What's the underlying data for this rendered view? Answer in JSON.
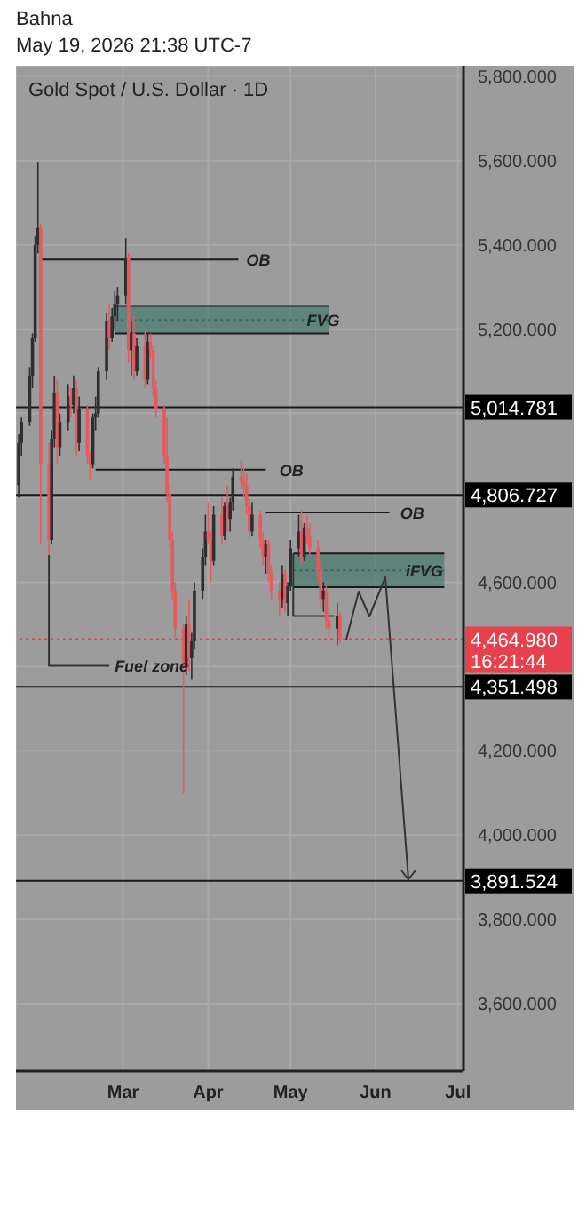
{
  "chart_data": {
    "type": "candlestick",
    "title": "Gold Spot / U.S. Dollar · 1D",
    "subtitle": "May 19, 2026 21:38 UTC-7",
    "annotations": [
      "Bahna",
      {
        "text": "OB",
        "x": "2026-04-13",
        "y": 5365
      },
      {
        "text": "OB",
        "x": "2026-04-25",
        "y": 4867
      },
      {
        "text": "OB",
        "x": "2026-06-08",
        "y": 4765
      },
      {
        "text": "FVG",
        "x": "2026-05-05",
        "y": 5222
      },
      {
        "text": "iFVG",
        "x": "2026-06-10",
        "y": 4628
      },
      {
        "text": "Fuel zone",
        "x": "2026-02-24",
        "y": 4402
      }
    ],
    "x": [
      "2026-01-22",
      "2026-01-23",
      "2026-01-26",
      "2026-01-27",
      "2026-01-28",
      "2026-01-29",
      "2026-01-30",
      "2026-02-02",
      "2026-02-03",
      "2026-02-04",
      "2026-02-05",
      "2026-02-06",
      "2026-02-09",
      "2026-02-10",
      "2026-02-11",
      "2026-02-12",
      "2026-02-13",
      "2026-02-16",
      "2026-02-17",
      "2026-02-18",
      "2026-02-19",
      "2026-02-20",
      "2026-02-23",
      "2026-02-24",
      "2026-02-25",
      "2026-02-26",
      "2026-02-27",
      "2026-03-02",
      "2026-03-03",
      "2026-03-04",
      "2026-03-05",
      "2026-03-06",
      "2026-03-09",
      "2026-03-10",
      "2026-03-11",
      "2026-03-12",
      "2026-03-13",
      "2026-03-16",
      "2026-03-17",
      "2026-03-18",
      "2026-03-19",
      "2026-03-20",
      "2026-03-23",
      "2026-03-24",
      "2026-03-25",
      "2026-03-26",
      "2026-03-27",
      "2026-03-30",
      "2026-03-31",
      "2026-04-01",
      "2026-04-02",
      "2026-04-03",
      "2026-04-06",
      "2026-04-07",
      "2026-04-08",
      "2026-04-09",
      "2026-04-10",
      "2026-04-13",
      "2026-04-14",
      "2026-04-15",
      "2026-04-16",
      "2026-04-17",
      "2026-04-20",
      "2026-04-21",
      "2026-04-22",
      "2026-04-23",
      "2026-04-24",
      "2026-04-27",
      "2026-04-28",
      "2026-04-29",
      "2026-04-30",
      "2026-05-01",
      "2026-05-04",
      "2026-05-05",
      "2026-05-06",
      "2026-05-07",
      "2026-05-08",
      "2026-05-11",
      "2026-05-12",
      "2026-05-13",
      "2026-05-14",
      "2026-05-15",
      "2026-05-18",
      "2026-05-19"
    ],
    "ohlc": [
      [
        4830,
        4950,
        4800,
        4930
      ],
      [
        4930,
        4990,
        4900,
        4980
      ],
      [
        4980,
        5110,
        4970,
        5090
      ],
      [
        5090,
        5190,
        5060,
        5180
      ],
      [
        5180,
        5420,
        5170,
        5400
      ],
      [
        5400,
        5597,
        5380,
        5440
      ],
      [
        5440,
        5450,
        4690,
        4880
      ],
      [
        4880,
        4930,
        4664,
        4700
      ],
      [
        4700,
        4960,
        4690,
        4940
      ],
      [
        4940,
        5090,
        4920,
        5050
      ],
      [
        5050,
        5080,
        4880,
        4920
      ],
      [
        4920,
        5000,
        4900,
        4980
      ],
      [
        4980,
        5070,
        4960,
        5040
      ],
      [
        5040,
        5060,
        4990,
        5020
      ],
      [
        5020,
        5090,
        5000,
        5060
      ],
      [
        5060,
        5080,
        4900,
        4930
      ],
      [
        4930,
        5040,
        4910,
        5010
      ],
      [
        5010,
        5020,
        4880,
        4900
      ],
      [
        4900,
        4910,
        4845,
        4880
      ],
      [
        4880,
        5000,
        4870,
        4990
      ],
      [
        4990,
        5040,
        4960,
        5000
      ],
      [
        5000,
        5110,
        4990,
        5100
      ],
      [
        5100,
        5240,
        5080,
        5220
      ],
      [
        5220,
        5260,
        5150,
        5180
      ],
      [
        5180,
        5250,
        5170,
        5230
      ],
      [
        5230,
        5290,
        5200,
        5260
      ],
      [
        5260,
        5300,
        5220,
        5280
      ],
      [
        5280,
        5416,
        5260,
        5370
      ],
      [
        5370,
        5380,
        5120,
        5150
      ],
      [
        5150,
        5220,
        5090,
        5190
      ],
      [
        5190,
        5230,
        5080,
        5100
      ],
      [
        5100,
        5180,
        5090,
        5160
      ],
      [
        5160,
        5200,
        5060,
        5080
      ],
      [
        5080,
        5190,
        5070,
        5170
      ],
      [
        5170,
        5190,
        5130,
        5150
      ],
      [
        5150,
        5160,
        5040,
        5060
      ],
      [
        5060,
        5080,
        4990,
        5010
      ],
      [
        5010,
        5020,
        4880,
        4900
      ],
      [
        4900,
        4990,
        4790,
        4810
      ],
      [
        4810,
        4830,
        4680,
        4700
      ],
      [
        4700,
        4720,
        4560,
        4580
      ],
      [
        4580,
        4600,
        4470,
        4490
      ],
      [
        4490,
        4500,
        4098,
        4400
      ],
      [
        4400,
        4520,
        4380,
        4500
      ],
      [
        4500,
        4560,
        4390,
        4420
      ],
      [
        4420,
        4480,
        4368,
        4460
      ],
      [
        4460,
        4600,
        4440,
        4580
      ],
      [
        4580,
        4680,
        4560,
        4660
      ],
      [
        4660,
        4760,
        4640,
        4720
      ],
      [
        4720,
        4790,
        4690,
        4700
      ],
      [
        4700,
        4720,
        4600,
        4650
      ],
      [
        4650,
        4780,
        4640,
        4760
      ],
      [
        4760,
        4800,
        4690,
        4710
      ],
      [
        4710,
        4790,
        4700,
        4780
      ],
      [
        4780,
        4830,
        4720,
        4750
      ],
      [
        4750,
        4800,
        4720,
        4790
      ],
      [
        4790,
        4870,
        4770,
        4850
      ],
      [
        4850,
        4888,
        4820,
        4840
      ],
      [
        4840,
        4870,
        4800,
        4830
      ],
      [
        4830,
        4860,
        4760,
        4780
      ],
      [
        4780,
        4800,
        4700,
        4720
      ],
      [
        4720,
        4790,
        4710,
        4760
      ],
      [
        4760,
        4770,
        4680,
        4700
      ],
      [
        4700,
        4720,
        4640,
        4660
      ],
      [
        4660,
        4700,
        4620,
        4690
      ],
      [
        4690,
        4700,
        4600,
        4620
      ],
      [
        4620,
        4640,
        4560,
        4580
      ],
      [
        4580,
        4600,
        4520,
        4560
      ],
      [
        4560,
        4640,
        4540,
        4620
      ],
      [
        4620,
        4630,
        4530,
        4550
      ],
      [
        4550,
        4600,
        4520,
        4590
      ],
      [
        4590,
        4700,
        4580,
        4680
      ],
      [
        4680,
        4760,
        4660,
        4720
      ],
      [
        4720,
        4770,
        4640,
        4660
      ],
      [
        4660,
        4740,
        4650,
        4730
      ],
      [
        4730,
        4760,
        4690,
        4710
      ],
      [
        4710,
        4740,
        4660,
        4680
      ],
      [
        4680,
        4700,
        4600,
        4630
      ],
      [
        4630,
        4650,
        4540,
        4560
      ],
      [
        4560,
        4600,
        4530,
        4580
      ],
      [
        4580,
        4590,
        4490,
        4510
      ],
      [
        4510,
        4540,
        4470,
        4490
      ],
      [
        4490,
        4550,
        4450,
        4520
      ],
      [
        4520,
        4530,
        4455,
        4464.98
      ]
    ],
    "colors": [
      "#2e2e2e",
      "#2e2e2e",
      "#2e2e2e",
      "#2e2e2e",
      "#2e2e2e",
      "#2e2e2e",
      "#e8585f",
      "#e8585f",
      "#2e2e2e",
      "#2e2e2e",
      "#e8585f",
      "#2e2e2e",
      "#2e2e2e",
      "#e8585f",
      "#2e2e2e",
      "#e8585f",
      "#2e2e2e",
      "#e8585f",
      "#e8585f",
      "#2e2e2e",
      "#2e2e2e",
      "#2e2e2e",
      "#2e2e2e",
      "#e8585f",
      "#2e2e2e",
      "#2e2e2e",
      "#2e2e2e",
      "#2e2e2e",
      "#e8585f",
      "#2e2e2e",
      "#e8585f",
      "#2e2e2e",
      "#e8585f",
      "#2e2e2e",
      "#e8585f",
      "#e8585f",
      "#e8585f",
      "#e8585f",
      "#e8585f",
      "#e8585f",
      "#e8585f",
      "#e8585f",
      "#e8585f",
      "#2e2e2e",
      "#e8585f",
      "#2e2e2e",
      "#2e2e2e",
      "#2e2e2e",
      "#2e2e2e",
      "#e8585f",
      "#e8585f",
      "#2e2e2e",
      "#e8585f",
      "#2e2e2e",
      "#e8585f",
      "#2e2e2e",
      "#2e2e2e",
      "#e8585f",
      "#e8585f",
      "#e8585f",
      "#e8585f",
      "#2e2e2e",
      "#e8585f",
      "#e8585f",
      "#2e2e2e",
      "#e8585f",
      "#e8585f",
      "#e8585f",
      "#2e2e2e",
      "#e8585f",
      "#2e2e2e",
      "#2e2e2e",
      "#2e2e2e",
      "#e8585f",
      "#2e2e2e",
      "#e8585f",
      "#e8585f",
      "#e8585f",
      "#e8585f",
      "#2e2e2e",
      "#e8585f",
      "#e8585f",
      "#2e2e2e",
      "#e8585f"
    ],
    "series": [
      {
        "type": "line",
        "color": "#1a1a1a",
        "x": [
          "2026-01-30",
          "2026-04-12"
        ],
        "values": [
          5365,
          5365
        ]
      },
      {
        "type": "line",
        "color": "#1a1a1a",
        "x": [
          "2026-02-19",
          "2026-04-22"
        ],
        "values": [
          4867,
          4867
        ]
      },
      {
        "type": "line",
        "color": "#1a1a1a",
        "x": [
          "2026-04-22",
          "2026-06-06"
        ],
        "values": [
          4765,
          4765
        ]
      },
      {
        "type": "line",
        "color": "#2f6f63",
        "line_style": "dotted",
        "x": [
          "2026-02-26",
          "2026-05-15"
        ],
        "values": [
          5222,
          5222
        ],
        "lower": [
          5190,
          5190
        ],
        "upper": [
          5255,
          5255
        ]
      },
      {
        "type": "line",
        "color": "#2f6f63",
        "line_style": "dotted",
        "x": [
          "2026-05-02",
          "2026-06-26"
        ],
        "values": [
          4628,
          4628
        ],
        "lower": [
          4588,
          4588
        ],
        "upper": [
          4668,
          4668
        ]
      },
      {
        "type": "line",
        "color": "#333333",
        "x": [
          "2026-02-02",
          "2026-02-02",
          "2026-02-24"
        ],
        "values": [
          4664,
          4402,
          4402
        ]
      },
      {
        "type": "line",
        "color": "#333333",
        "x": [
          "2026-05-02",
          "2026-05-02",
          "2026-05-17"
        ],
        "values": [
          4668,
          4520,
          4520
        ]
      }
    ],
    "ref_lines": [
      {
        "axis": "y",
        "value": 5014.781,
        "label": "5,014.781",
        "color": "#1a1a1a"
      },
      {
        "axis": "y",
        "value": 4806.727,
        "label": "4,806.727",
        "color": "#1a1a1a"
      },
      {
        "axis": "y",
        "value": 4464.98,
        "label": "4,464.980\n16:21:44",
        "color": "#e8404c",
        "line_style": "dotted"
      },
      {
        "axis": "y",
        "value": 4351.498,
        "label": "4,351.498",
        "color": "#1a1a1a"
      },
      {
        "axis": "y",
        "value": 3891.524,
        "label": "3,891.524",
        "color": "#1a1a1a"
      }
    ],
    "xlim": [
      "2026-01-21",
      "2026-07-03"
    ],
    "xticks": [
      {
        "value": "2026-03-01",
        "label": "Mar"
      },
      {
        "value": "2026-04-01",
        "label": "Apr"
      },
      {
        "value": "2026-05-01",
        "label": "May"
      },
      {
        "value": "2026-06-01",
        "label": "Jun"
      },
      {
        "value": "2026-07-01",
        "label": "Jul"
      }
    ],
    "ylim": [
      3440,
      5825
    ],
    "yticks": [
      {
        "value": 3600,
        "label": "3,600.000"
      },
      {
        "value": 3800,
        "label": "3,800.000"
      },
      {
        "value": 4000,
        "label": "4,000.000"
      },
      {
        "value": 4200,
        "label": "4,200.000"
      },
      {
        "value": 4400,
        "label": null
      },
      {
        "value": 4600,
        "label": "4,600.000"
      },
      {
        "value": 4800,
        "label": null
      },
      {
        "value": 5000,
        "label": null
      },
      {
        "value": 5200,
        "label": "5,200.000"
      },
      {
        "value": 5400,
        "label": "5,400.000"
      },
      {
        "value": 5600,
        "label": "5,600.000"
      },
      {
        "value": 5800,
        "label": "5,800.000"
      }
    ],
    "grid": true
  }
}
